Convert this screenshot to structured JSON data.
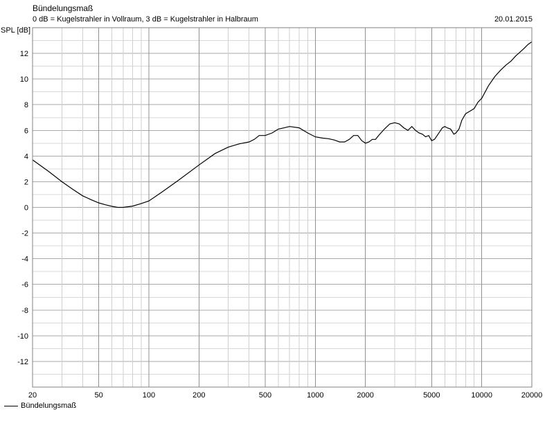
{
  "chart_data": {
    "type": "line",
    "title": "Bündelungsmaß",
    "subtitle": "0 dB = Kugelstrahler in Vollraum, 3 dB = Kugelstrahler in Halbraum",
    "date": "20.01.2015",
    "xlabel": "",
    "ylabel": "SPL [dB]",
    "xscale": "log",
    "xlim": [
      20,
      20000
    ],
    "ylim": [
      -14,
      14
    ],
    "grid": true,
    "legend_position": "bottom-left",
    "x_tick_labels": [
      "20",
      "50",
      "100",
      "200",
      "500",
      "1000",
      "2000",
      "5000",
      "10000",
      "20000"
    ],
    "y_tick_labels": [
      "12",
      "10",
      "8",
      "6",
      "4",
      "2",
      "0",
      "-2",
      "-4",
      "-6",
      "-8",
      "-10",
      "-12"
    ],
    "series": [
      {
        "name": "Bündelungsmaß",
        "color": "#000000",
        "x": [
          20,
          25,
          30,
          35,
          40,
          45,
          50,
          55,
          60,
          65,
          70,
          80,
          90,
          100,
          120,
          150,
          200,
          250,
          300,
          350,
          400,
          430,
          460,
          500,
          550,
          600,
          650,
          700,
          800,
          900,
          1000,
          1100,
          1200,
          1300,
          1400,
          1500,
          1600,
          1700,
          1800,
          1900,
          2000,
          2100,
          2200,
          2300,
          2400,
          2600,
          2800,
          3000,
          3200,
          3400,
          3600,
          3800,
          4000,
          4200,
          4400,
          4600,
          4800,
          5000,
          5200,
          5400,
          5600,
          5800,
          6000,
          6200,
          6500,
          6800,
          7000,
          7300,
          7600,
          8000,
          8500,
          9000,
          9500,
          10000,
          11000,
          12000,
          13000,
          14000,
          15000,
          16000,
          17000,
          18000,
          19000,
          20000
        ],
        "y": [
          3.7,
          2.8,
          2.0,
          1.4,
          0.9,
          0.6,
          0.35,
          0.2,
          0.08,
          0.0,
          0.0,
          0.1,
          0.3,
          0.5,
          1.2,
          2.1,
          3.3,
          4.2,
          4.7,
          4.95,
          5.1,
          5.3,
          5.6,
          5.6,
          5.8,
          6.1,
          6.2,
          6.3,
          6.2,
          5.8,
          5.5,
          5.4,
          5.35,
          5.25,
          5.1,
          5.1,
          5.3,
          5.6,
          5.6,
          5.2,
          5.0,
          5.1,
          5.3,
          5.3,
          5.6,
          6.1,
          6.5,
          6.6,
          6.5,
          6.2,
          6.0,
          6.3,
          6.0,
          5.8,
          5.7,
          5.5,
          5.6,
          5.2,
          5.3,
          5.6,
          5.9,
          6.2,
          6.3,
          6.2,
          6.1,
          5.7,
          5.8,
          6.1,
          6.8,
          7.3,
          7.5,
          7.7,
          8.2,
          8.5,
          9.5,
          10.2,
          10.7,
          11.1,
          11.4,
          11.8,
          12.1,
          12.4,
          12.7,
          12.9
        ]
      }
    ]
  }
}
